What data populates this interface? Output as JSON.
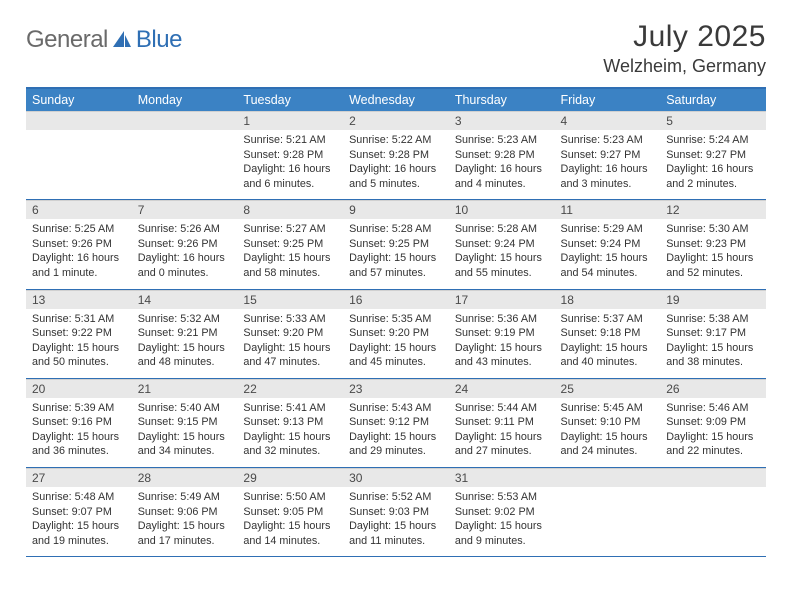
{
  "brand": {
    "part1": "General",
    "part2": "Blue"
  },
  "title": "July 2025",
  "location": "Welzheim, Germany",
  "colors": {
    "header_bg": "#3b82c4",
    "header_border": "#2f6fb4",
    "daynum_bg": "#e8e8e8",
    "text": "#333333",
    "logo_gray": "#6a6a6a",
    "logo_blue": "#2f6fb4",
    "page_bg": "#ffffff"
  },
  "typography": {
    "title_fontsize_pt": 22,
    "location_fontsize_pt": 14,
    "dayheader_fontsize_pt": 9,
    "body_fontsize_pt": 8
  },
  "day_headers": [
    "Sunday",
    "Monday",
    "Tuesday",
    "Wednesday",
    "Thursday",
    "Friday",
    "Saturday"
  ],
  "weeks": [
    [
      {
        "n": "",
        "lines": []
      },
      {
        "n": "",
        "lines": []
      },
      {
        "n": "1",
        "lines": [
          "Sunrise: 5:21 AM",
          "Sunset: 9:28 PM",
          "Daylight: 16 hours and 6 minutes."
        ]
      },
      {
        "n": "2",
        "lines": [
          "Sunrise: 5:22 AM",
          "Sunset: 9:28 PM",
          "Daylight: 16 hours and 5 minutes."
        ]
      },
      {
        "n": "3",
        "lines": [
          "Sunrise: 5:23 AM",
          "Sunset: 9:28 PM",
          "Daylight: 16 hours and 4 minutes."
        ]
      },
      {
        "n": "4",
        "lines": [
          "Sunrise: 5:23 AM",
          "Sunset: 9:27 PM",
          "Daylight: 16 hours and 3 minutes."
        ]
      },
      {
        "n": "5",
        "lines": [
          "Sunrise: 5:24 AM",
          "Sunset: 9:27 PM",
          "Daylight: 16 hours and 2 minutes."
        ]
      }
    ],
    [
      {
        "n": "6",
        "lines": [
          "Sunrise: 5:25 AM",
          "Sunset: 9:26 PM",
          "Daylight: 16 hours and 1 minute."
        ]
      },
      {
        "n": "7",
        "lines": [
          "Sunrise: 5:26 AM",
          "Sunset: 9:26 PM",
          "Daylight: 16 hours and 0 minutes."
        ]
      },
      {
        "n": "8",
        "lines": [
          "Sunrise: 5:27 AM",
          "Sunset: 9:25 PM",
          "Daylight: 15 hours and 58 minutes."
        ]
      },
      {
        "n": "9",
        "lines": [
          "Sunrise: 5:28 AM",
          "Sunset: 9:25 PM",
          "Daylight: 15 hours and 57 minutes."
        ]
      },
      {
        "n": "10",
        "lines": [
          "Sunrise: 5:28 AM",
          "Sunset: 9:24 PM",
          "Daylight: 15 hours and 55 minutes."
        ]
      },
      {
        "n": "11",
        "lines": [
          "Sunrise: 5:29 AM",
          "Sunset: 9:24 PM",
          "Daylight: 15 hours and 54 minutes."
        ]
      },
      {
        "n": "12",
        "lines": [
          "Sunrise: 5:30 AM",
          "Sunset: 9:23 PM",
          "Daylight: 15 hours and 52 minutes."
        ]
      }
    ],
    [
      {
        "n": "13",
        "lines": [
          "Sunrise: 5:31 AM",
          "Sunset: 9:22 PM",
          "Daylight: 15 hours and 50 minutes."
        ]
      },
      {
        "n": "14",
        "lines": [
          "Sunrise: 5:32 AM",
          "Sunset: 9:21 PM",
          "Daylight: 15 hours and 48 minutes."
        ]
      },
      {
        "n": "15",
        "lines": [
          "Sunrise: 5:33 AM",
          "Sunset: 9:20 PM",
          "Daylight: 15 hours and 47 minutes."
        ]
      },
      {
        "n": "16",
        "lines": [
          "Sunrise: 5:35 AM",
          "Sunset: 9:20 PM",
          "Daylight: 15 hours and 45 minutes."
        ]
      },
      {
        "n": "17",
        "lines": [
          "Sunrise: 5:36 AM",
          "Sunset: 9:19 PM",
          "Daylight: 15 hours and 43 minutes."
        ]
      },
      {
        "n": "18",
        "lines": [
          "Sunrise: 5:37 AM",
          "Sunset: 9:18 PM",
          "Daylight: 15 hours and 40 minutes."
        ]
      },
      {
        "n": "19",
        "lines": [
          "Sunrise: 5:38 AM",
          "Sunset: 9:17 PM",
          "Daylight: 15 hours and 38 minutes."
        ]
      }
    ],
    [
      {
        "n": "20",
        "lines": [
          "Sunrise: 5:39 AM",
          "Sunset: 9:16 PM",
          "Daylight: 15 hours and 36 minutes."
        ]
      },
      {
        "n": "21",
        "lines": [
          "Sunrise: 5:40 AM",
          "Sunset: 9:15 PM",
          "Daylight: 15 hours and 34 minutes."
        ]
      },
      {
        "n": "22",
        "lines": [
          "Sunrise: 5:41 AM",
          "Sunset: 9:13 PM",
          "Daylight: 15 hours and 32 minutes."
        ]
      },
      {
        "n": "23",
        "lines": [
          "Sunrise: 5:43 AM",
          "Sunset: 9:12 PM",
          "Daylight: 15 hours and 29 minutes."
        ]
      },
      {
        "n": "24",
        "lines": [
          "Sunrise: 5:44 AM",
          "Sunset: 9:11 PM",
          "Daylight: 15 hours and 27 minutes."
        ]
      },
      {
        "n": "25",
        "lines": [
          "Sunrise: 5:45 AM",
          "Sunset: 9:10 PM",
          "Daylight: 15 hours and 24 minutes."
        ]
      },
      {
        "n": "26",
        "lines": [
          "Sunrise: 5:46 AM",
          "Sunset: 9:09 PM",
          "Daylight: 15 hours and 22 minutes."
        ]
      }
    ],
    [
      {
        "n": "27",
        "lines": [
          "Sunrise: 5:48 AM",
          "Sunset: 9:07 PM",
          "Daylight: 15 hours and 19 minutes."
        ]
      },
      {
        "n": "28",
        "lines": [
          "Sunrise: 5:49 AM",
          "Sunset: 9:06 PM",
          "Daylight: 15 hours and 17 minutes."
        ]
      },
      {
        "n": "29",
        "lines": [
          "Sunrise: 5:50 AM",
          "Sunset: 9:05 PM",
          "Daylight: 15 hours and 14 minutes."
        ]
      },
      {
        "n": "30",
        "lines": [
          "Sunrise: 5:52 AM",
          "Sunset: 9:03 PM",
          "Daylight: 15 hours and 11 minutes."
        ]
      },
      {
        "n": "31",
        "lines": [
          "Sunrise: 5:53 AM",
          "Sunset: 9:02 PM",
          "Daylight: 15 hours and 9 minutes."
        ]
      },
      {
        "n": "",
        "lines": []
      },
      {
        "n": "",
        "lines": []
      }
    ]
  ]
}
